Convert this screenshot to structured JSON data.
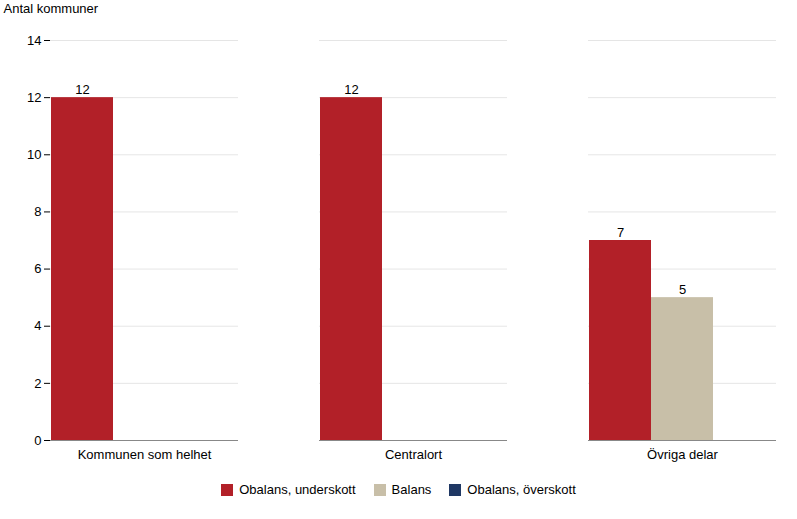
{
  "chart_data": {
    "type": "bar",
    "ylabel": "Antal kommuner",
    "categories": [
      "Kommunen som helhet",
      "Centralort",
      "Övriga delar"
    ],
    "series": [
      {
        "name": "Obalans, underskott",
        "color": "#B22028",
        "values": [
          12,
          12,
          7
        ]
      },
      {
        "name": "Balans",
        "color": "#C8BFA8",
        "values": [
          null,
          null,
          5
        ]
      },
      {
        "name": "Obalans, överskott",
        "color": "#1F3864",
        "values": [
          null,
          null,
          null
        ]
      }
    ],
    "ylim": [
      0,
      14
    ],
    "yticks": [
      0,
      2,
      4,
      6,
      8,
      10,
      12,
      14
    ],
    "grid": true,
    "legend": "bottom",
    "data_labels": true
  }
}
